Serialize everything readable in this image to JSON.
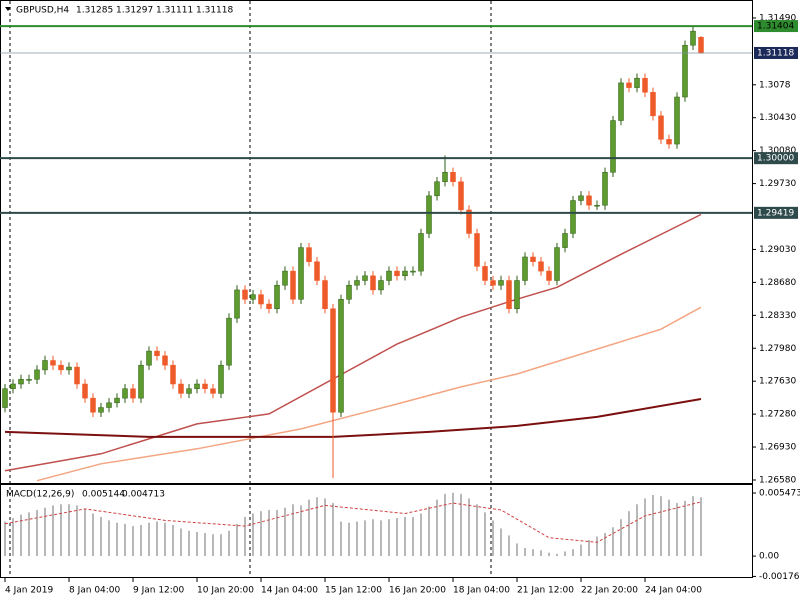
{
  "chart_data": [
    {
      "type": "candlestick",
      "title": "GBPUSD,H4",
      "header_values": [
        1.31285,
        1.31297,
        1.31111,
        1.31118
      ],
      "up_color": "#5e9b2f",
      "down_color": "#ef5a2a",
      "xlim": [
        -0.625,
        93.375
      ],
      "xticks": [
        0,
        8,
        16,
        24,
        32,
        40,
        48,
        56,
        64,
        72,
        80
      ],
      "xtick_labels": [
        "4 Jan 2019",
        "8 Jan 04:00",
        "9 Jan 12:00",
        "10 Jan 20:00",
        "14 Jan 04:00",
        "15 Jan 12:00",
        "16 Jan 20:00",
        "18 Jan 04:00",
        "21 Jan 12:00",
        "22 Jan 20:00",
        "24 Jan 04:00"
      ],
      "ylim": [
        1.26548,
        1.31681
      ],
      "yticks": [
        {
          "value": 1.3149,
          "label": "1.31490"
        },
        1.3078,
        {
          "value": 1.3043,
          "label": "1.30430"
        },
        {
          "value": 1.3008,
          "label": "1.30080"
        },
        {
          "value": 1.2973,
          "label": "1.29730"
        },
        {
          "value": 1.2903,
          "label": "1.29030"
        },
        {
          "value": 1.2868,
          "label": "1.28680"
        },
        {
          "value": 1.2833,
          "label": "1.28330"
        },
        {
          "value": 1.2798,
          "label": "1.27980"
        },
        {
          "value": 1.2763,
          "label": "1.27630"
        },
        {
          "value": 1.2728,
          "label": "1.27280"
        },
        {
          "value": 1.2693,
          "label": "1.26930"
        },
        {
          "value": 1.2658,
          "label": "1.26580"
        }
      ],
      "open": [
        1.2735,
        1.2755,
        1.276,
        1.2765,
        1.2765,
        1.2775,
        1.2785,
        1.278,
        1.2775,
        1.2778,
        1.276,
        1.2745,
        1.273,
        1.2735,
        1.274,
        1.2745,
        1.2755,
        1.2745,
        1.278,
        1.2795,
        1.279,
        1.278,
        1.276,
        1.275,
        1.2755,
        1.276,
        1.2755,
        1.275,
        1.278,
        1.283,
        1.286,
        1.285,
        1.2855,
        1.2845,
        1.284,
        1.2865,
        1.288,
        1.285,
        1.2905,
        1.289,
        1.287,
        1.284,
        1.273,
        1.285,
        1.2865,
        1.287,
        1.2875,
        1.286,
        1.287,
        1.288,
        1.2875,
        1.288,
        1.288,
        1.292,
        1.296,
        1.2975,
        1.2985,
        1.2975,
        1.2945,
        1.292,
        1.2885,
        1.287,
        1.2865,
        1.287,
        1.284,
        1.287,
        1.2895,
        1.289,
        1.288,
        1.287,
        1.2905,
        1.292,
        1.2955,
        1.296,
        1.295,
        1.295,
        1.2985,
        1.304,
        1.308,
        1.3075,
        1.3085,
        1.307,
        1.3045,
        1.302,
        1.3015,
        1.3065,
        1.312,
        1.31285
      ],
      "high": [
        1.276,
        1.2765,
        1.277,
        1.277,
        1.278,
        1.279,
        1.279,
        1.2785,
        1.2783,
        1.2783,
        1.2765,
        1.275,
        1.274,
        1.2745,
        1.275,
        1.276,
        1.276,
        1.2785,
        1.28,
        1.28,
        1.2795,
        1.2785,
        1.2765,
        1.276,
        1.2765,
        1.2765,
        1.276,
        1.2785,
        1.2835,
        1.2865,
        1.2865,
        1.286,
        1.286,
        1.285,
        1.287,
        1.2885,
        1.2885,
        1.291,
        1.291,
        1.2895,
        1.2875,
        1.2845,
        1.2855,
        1.287,
        1.2875,
        1.288,
        1.288,
        1.2875,
        1.2885,
        1.2885,
        1.2885,
        1.2885,
        1.2925,
        1.2965,
        1.298,
        1.3003,
        1.299,
        1.298,
        1.295,
        1.2925,
        1.289,
        1.2875,
        1.2875,
        1.2875,
        1.2875,
        1.29,
        1.29,
        1.2895,
        1.2885,
        1.291,
        1.2925,
        1.296,
        1.2965,
        1.2965,
        1.2955,
        1.299,
        1.3045,
        1.3085,
        1.3085,
        1.309,
        1.309,
        1.3075,
        1.305,
        1.3025,
        1.307,
        1.3125,
        1.314,
        1.31297
      ],
      "low": [
        1.273,
        1.275,
        1.2755,
        1.276,
        1.276,
        1.277,
        1.2775,
        1.277,
        1.277,
        1.2755,
        1.274,
        1.2725,
        1.2725,
        1.273,
        1.2735,
        1.274,
        1.274,
        1.274,
        1.2775,
        1.2785,
        1.2775,
        1.2755,
        1.2745,
        1.2745,
        1.275,
        1.275,
        1.2745,
        1.2745,
        1.2775,
        1.2825,
        1.2845,
        1.2845,
        1.284,
        1.2835,
        1.2835,
        1.286,
        1.2845,
        1.2845,
        1.2885,
        1.2865,
        1.2835,
        1.266,
        1.2725,
        1.2845,
        1.286,
        1.2865,
        1.2855,
        1.2855,
        1.2865,
        1.287,
        1.287,
        1.2875,
        1.2875,
        1.2915,
        1.2955,
        1.297,
        1.297,
        1.294,
        1.2915,
        1.288,
        1.2865,
        1.286,
        1.286,
        1.2835,
        1.2835,
        1.2865,
        1.2885,
        1.2875,
        1.2865,
        1.2865,
        1.29,
        1.2915,
        1.295,
        1.2945,
        1.2945,
        1.2945,
        1.298,
        1.3035,
        1.307,
        1.307,
        1.3065,
        1.304,
        1.3015,
        1.301,
        1.301,
        1.306,
        1.3115,
        1.31111
      ],
      "close": [
        1.2755,
        1.276,
        1.2765,
        1.2765,
        1.2775,
        1.2785,
        1.278,
        1.2775,
        1.2778,
        1.276,
        1.2745,
        1.273,
        1.2735,
        1.274,
        1.2745,
        1.2755,
        1.2745,
        1.278,
        1.2795,
        1.279,
        1.278,
        1.276,
        1.275,
        1.2755,
        1.276,
        1.2755,
        1.275,
        1.278,
        1.283,
        1.286,
        1.285,
        1.2855,
        1.2845,
        1.284,
        1.2865,
        1.288,
        1.285,
        1.2905,
        1.289,
        1.287,
        1.284,
        1.273,
        1.285,
        1.2865,
        1.287,
        1.2875,
        1.286,
        1.287,
        1.288,
        1.2875,
        1.288,
        1.288,
        1.292,
        1.296,
        1.2975,
        1.2985,
        1.2975,
        1.2945,
        1.292,
        1.2885,
        1.287,
        1.2865,
        1.287,
        1.284,
        1.287,
        1.2895,
        1.289,
        1.288,
        1.287,
        1.2905,
        1.292,
        1.2955,
        1.296,
        1.295,
        1.295,
        1.2985,
        1.304,
        1.308,
        1.3075,
        1.3085,
        1.307,
        1.3045,
        1.302,
        1.3015,
        1.3065,
        1.312,
        1.3135,
        1.31118
      ],
      "lines": [
        {
          "color": "#c0504d",
          "x": [
            0,
            12,
            24,
            33,
            41,
            49,
            57,
            64,
            69,
            77,
            87
          ],
          "values": [
            1.26678,
            1.26858,
            1.27176,
            1.27282,
            1.27653,
            1.28024,
            1.2831,
            1.28501,
            1.28628,
            1.28978,
            1.29401
          ]
        },
        {
          "color": "#f4a582",
          "x": [
            4,
            12,
            24,
            37,
            49,
            57,
            64,
            74,
            82,
            87
          ],
          "values": [
            1.26572,
            1.26752,
            1.26911,
            1.27123,
            1.27388,
            1.27569,
            1.27706,
            1.27971,
            1.28183,
            1.28416
          ]
        },
        {
          "color": "#7b0f0f",
          "x": [
            0,
            18,
            41,
            53,
            64,
            74,
            87
          ],
          "values": [
            1.27091,
            1.27038,
            1.27038,
            1.27091,
            1.27155,
            1.2725,
            1.27441
          ]
        }
      ],
      "levels": [
        {
          "value": 1.31404,
          "color": "#2e8b2e",
          "text_color": "#000000"
        },
        {
          "value": 1.31118,
          "color": "#1c2a5a",
          "text_color": "#ffffff"
        },
        {
          "value": 1.3,
          "label": "1.30000",
          "color": "#2f4a4a",
          "text_color": "#ffffff"
        },
        {
          "value": 1.29419,
          "color": "#2f4a4a",
          "text_color": "#ffffff"
        }
      ]
    },
    {
      "type": "bar",
      "title": "MACD(12,26,9)",
      "header_values": [
        0.005144,
        0.004713
      ],
      "color": "#a0a0a0",
      "signal_color": "#d04040",
      "xlim": [
        -0.625,
        93.375
      ],
      "ylim": [
        -0.0019,
        0.00617
      ],
      "yticks": [
        0.005473,
        {
          "value": 0,
          "label": "0.00"
        },
        -0.001763
      ],
      "values": [
        0.003,
        0.0033,
        0.0036,
        0.0038,
        0.004,
        0.0042,
        0.0044,
        0.0045,
        0.0045,
        0.0044,
        0.0041,
        0.0037,
        0.0034,
        0.0031,
        0.0029,
        0.0028,
        0.0026,
        0.0027,
        0.0029,
        0.003,
        0.0029,
        0.0027,
        0.0024,
        0.0022,
        0.0021,
        0.002,
        0.0019,
        0.0019,
        0.0022,
        0.0028,
        0.0034,
        0.0037,
        0.0039,
        0.004,
        0.004,
        0.0042,
        0.0045,
        0.0044,
        0.0049,
        0.0051,
        0.005,
        0.0046,
        0.003,
        0.0029,
        0.003,
        0.0031,
        0.0032,
        0.0031,
        0.0032,
        0.0033,
        0.0034,
        0.0034,
        0.0037,
        0.0043,
        0.0049,
        0.0054,
        0.0055,
        0.0054,
        0.005,
        0.0045,
        0.0038,
        0.0031,
        0.0024,
        0.0018,
        0.0011,
        0.0007,
        0.0006,
        0.0005,
        0.0003,
        0.0002,
        0.0004,
        0.0006,
        0.001,
        0.0014,
        0.0017,
        0.002,
        0.0025,
        0.0032,
        0.0039,
        0.0045,
        0.005,
        0.0053,
        0.0052,
        0.0049,
        0.0046,
        0.0048,
        0.0052,
        0.0051
      ],
      "signal": {
        "x": [
          0,
          10,
          20,
          30,
          40,
          50,
          56,
          62,
          68,
          74,
          80,
          87
        ],
        "values": [
          0.0028,
          0.0041,
          0.0031,
          0.0026,
          0.0044,
          0.0037,
          0.0046,
          0.004,
          0.0016,
          0.0012,
          0.0035,
          0.0047
        ]
      }
    }
  ]
}
